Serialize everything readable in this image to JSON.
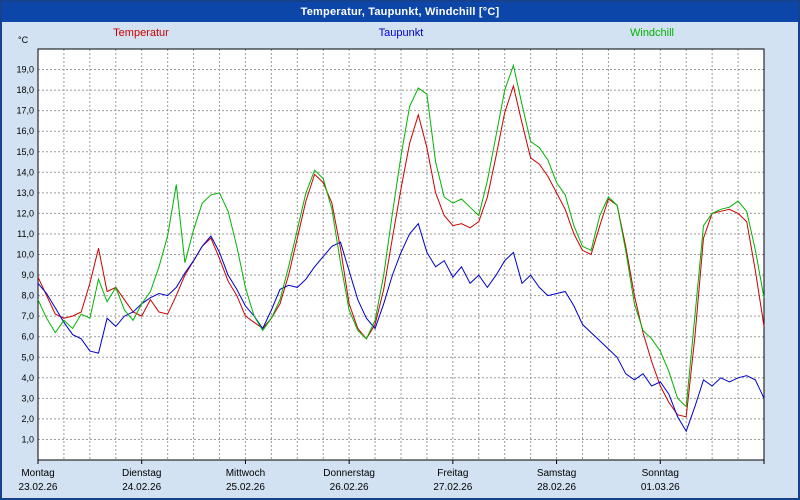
{
  "window": {
    "title": "Temperatur, Taupunkt, Windchill [°C]",
    "titlebar_color": "#0b46a8",
    "background_color": "#d2e2f2",
    "border_color": "#16418c"
  },
  "legend": [
    {
      "label": "Temperatur",
      "color": "#cc0000"
    },
    {
      "label": "Taupunkt",
      "color": "#0000cc"
    },
    {
      "label": "Windchill",
      "color": "#00b400"
    }
  ],
  "chart_data": {
    "type": "line",
    "title": "Temperatur, Taupunkt, Windchill [°C]",
    "ylabel": "°C",
    "xlabel": "",
    "ylim": [
      0,
      20
    ],
    "ytick_step": 1.0,
    "ytick_labels": [
      "1,0",
      "2,0",
      "3,0",
      "4,0",
      "5,0",
      "6,0",
      "7,0",
      "8,0",
      "9,0",
      "10,0",
      "11,0",
      "12,0",
      "13,0",
      "14,0",
      "15,0",
      "16,0",
      "17,0",
      "18,0",
      "19,0"
    ],
    "grid": "dashed",
    "grid_color": "#9a9a9a",
    "legend_position": "top",
    "x_unit": "hours",
    "x_range_hours": [
      0,
      168
    ],
    "x_sample_step_hours": 2,
    "x_axis": {
      "minor_grid_hours": 6,
      "days": [
        {
          "name": "Montag",
          "date": "23.02.26"
        },
        {
          "name": "Dienstag",
          "date": "24.02.26"
        },
        {
          "name": "Mittwoch",
          "date": "25.02.26"
        },
        {
          "name": "Donnerstag",
          "date": "26.02.26"
        },
        {
          "name": "Freitag",
          "date": "27.02.26"
        },
        {
          "name": "Samstag",
          "date": "28.02.26"
        },
        {
          "name": "Sonntag",
          "date": "01.03.26"
        }
      ]
    },
    "series": [
      {
        "name": "Temperatur",
        "color": "#cc0000",
        "values": [
          8.9,
          8.0,
          7.1,
          6.9,
          7.0,
          7.2,
          8.6,
          10.3,
          8.2,
          8.4,
          7.8,
          7.2,
          7.0,
          7.8,
          7.2,
          7.1,
          8.0,
          9.0,
          9.7,
          10.4,
          10.8,
          9.8,
          8.7,
          8.0,
          7.0,
          6.7,
          6.4,
          6.9,
          7.6,
          9.0,
          10.8,
          12.6,
          13.9,
          13.5,
          12.5,
          10.3,
          7.6,
          6.4,
          5.9,
          6.6,
          8.3,
          10.8,
          13.2,
          15.4,
          16.8,
          15.2,
          13.0,
          11.9,
          11.4,
          11.5,
          11.3,
          11.6,
          12.8,
          14.8,
          16.9,
          18.2,
          16.4,
          14.7,
          14.4,
          13.8,
          13.0,
          12.2,
          11.0,
          10.2,
          10.0,
          11.4,
          12.7,
          12.4,
          10.4,
          8.0,
          6.2,
          4.8,
          3.6,
          2.8,
          2.2,
          2.1,
          6.0,
          10.8,
          12.0,
          12.1,
          12.2,
          12.0,
          11.6,
          9.2,
          6.5
        ]
      },
      {
        "name": "Taupunkt",
        "color": "#0000cc",
        "values": [
          8.6,
          8.1,
          7.4,
          6.7,
          6.1,
          5.9,
          5.3,
          5.2,
          6.9,
          6.5,
          7.0,
          7.2,
          7.6,
          7.9,
          8.1,
          8.0,
          8.4,
          9.1,
          9.7,
          10.4,
          10.9,
          10.1,
          9.0,
          8.3,
          7.5,
          7.0,
          6.4,
          7.3,
          8.3,
          8.5,
          8.4,
          8.8,
          9.4,
          9.9,
          10.4,
          10.6,
          9.2,
          7.8,
          6.9,
          6.4,
          7.6,
          9.0,
          10.1,
          11.0,
          11.5,
          10.1,
          9.4,
          9.7,
          8.9,
          9.4,
          8.6,
          9.0,
          8.4,
          9.0,
          9.7,
          10.1,
          8.6,
          9.0,
          8.4,
          8.0,
          8.1,
          8.2,
          7.5,
          6.6,
          6.2,
          5.8,
          5.4,
          5.0,
          4.2,
          3.9,
          4.2,
          3.6,
          3.8,
          3.2,
          2.1,
          1.4,
          2.6,
          3.9,
          3.6,
          4.0,
          3.8,
          4.0,
          4.1,
          3.9,
          3.0
        ]
      },
      {
        "name": "Windchill",
        "color": "#00b400",
        "values": [
          7.8,
          6.9,
          6.2,
          6.8,
          6.4,
          7.1,
          6.9,
          8.8,
          7.7,
          8.4,
          7.3,
          6.8,
          7.6,
          8.2,
          9.4,
          10.9,
          13.4,
          9.6,
          11.2,
          12.5,
          12.9,
          13.0,
          12.1,
          10.4,
          8.4,
          7.0,
          6.3,
          6.9,
          7.8,
          9.4,
          11.2,
          13.0,
          14.1,
          13.7,
          12.2,
          9.6,
          7.3,
          6.3,
          5.9,
          6.8,
          9.0,
          12.0,
          14.8,
          17.2,
          18.1,
          17.8,
          14.5,
          12.8,
          12.5,
          12.7,
          12.3,
          11.9,
          13.6,
          15.8,
          18.0,
          19.2,
          17.3,
          15.5,
          15.2,
          14.6,
          13.5,
          12.9,
          11.4,
          10.4,
          10.2,
          11.9,
          12.8,
          12.4,
          10.2,
          7.6,
          6.3,
          5.9,
          5.3,
          4.3,
          3.0,
          2.6,
          7.0,
          11.4,
          12.0,
          12.2,
          12.3,
          12.6,
          12.1,
          10.2,
          7.9
        ]
      }
    ]
  }
}
